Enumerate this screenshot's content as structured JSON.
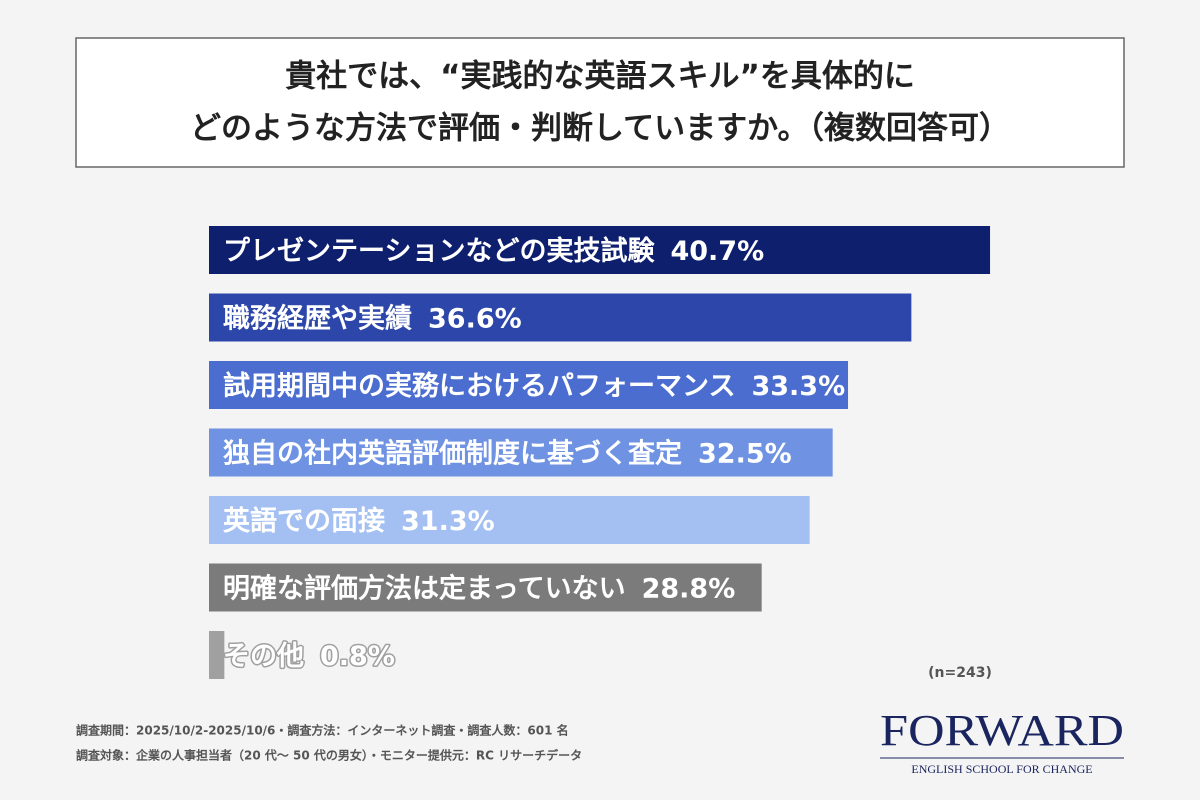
{
  "chart_data": {
    "type": "bar",
    "title_lines": [
      "貴社では、“実践的な英語スキル”を具体的に",
      "どのような方法で評価・判断していますか。（複数回答可）"
    ],
    "categories": [
      "プレゼンテーションなどの実技試験",
      "職務経歴や実績",
      "試用期間中の実務におけるパフォーマンス",
      "独自の社内英語評価制度に基づく査定",
      "英語での面接",
      "明確な評価方法は定まっていない",
      "その他"
    ],
    "values": [
      40.7,
      36.6,
      33.3,
      32.5,
      31.3,
      28.8,
      0.8
    ],
    "value_labels": [
      "40.7%",
      "36.6%",
      "33.3%",
      "32.5%",
      "31.3%",
      "28.8%",
      "0.8%"
    ],
    "colors": [
      "#0e1f6e",
      "#2c46a9",
      "#4a6dcf",
      "#6f92e2",
      "#a4c0f3",
      "#7b7b7b",
      "#a0a0a0"
    ],
    "note": "(n=243)",
    "footer": [
      "調査期間：2025/10/2-2025/10/6・調査方法：インターネット調査・調査人数：601 名",
      "調査対象：企業の人事担当者（20 代〜 50 代の男女）・モニター提供元：RC リサーチデータ"
    ],
    "logo": {
      "name": "FORWARD",
      "tagline": "ENGLISH SCHOOL FOR CHANGE"
    }
  }
}
